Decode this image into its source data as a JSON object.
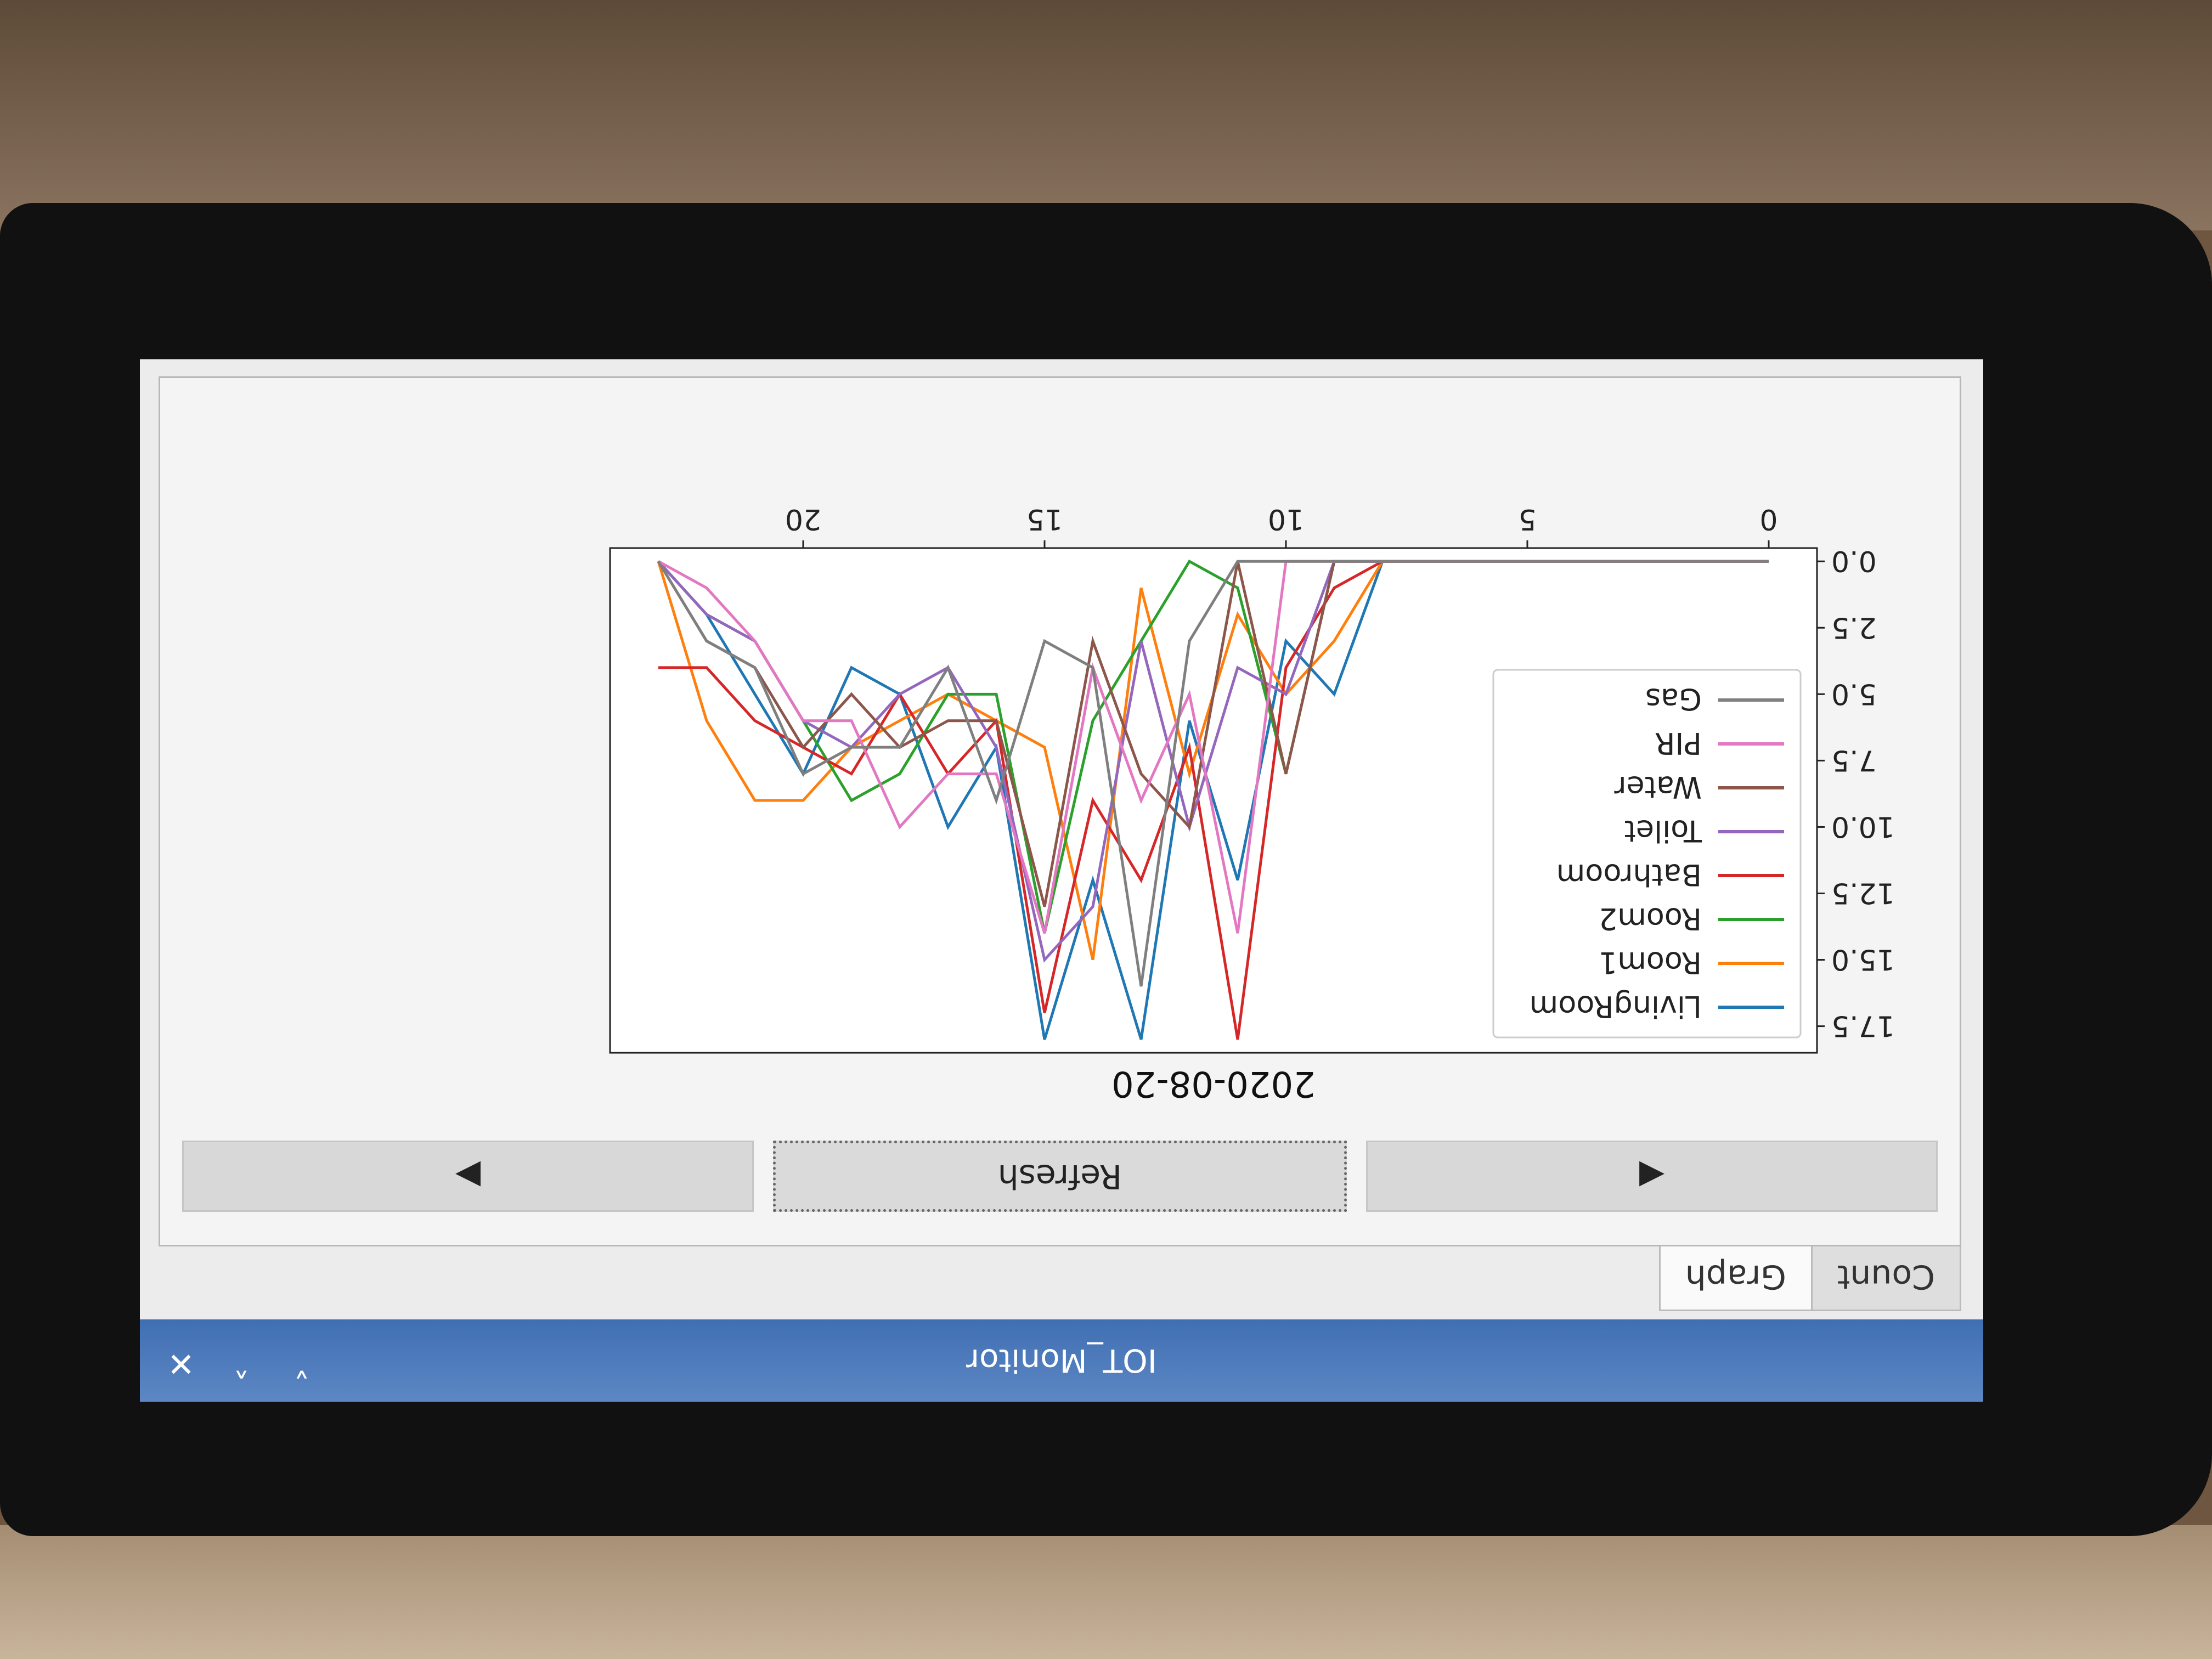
{
  "window": {
    "title": "IOT_Monitor",
    "controls": {
      "minimize": "˅",
      "maximize": "˄",
      "close": "✕"
    }
  },
  "tabs": [
    {
      "label": "Count",
      "active": false
    },
    {
      "label": "Graph",
      "active": true
    }
  ],
  "navigation": {
    "prev_label": "◀",
    "refresh_label": "Refresh",
    "next_label": "▶"
  },
  "colors": {
    "titlebar": "#4a78bb",
    "LivingRoom": "#1f77b4",
    "Room1": "#ff7f0e",
    "Room2": "#2ca02c",
    "Bathroom": "#d62728",
    "Toilet": "#9467bd",
    "Water": "#8c564b",
    "PIR": "#e377c2",
    "Gas": "#7f7f7f"
  },
  "chart_data": {
    "type": "line",
    "title": "2020-08-20",
    "xlabel": "",
    "ylabel": "",
    "xlim": [
      -1,
      24
    ],
    "ylim": [
      -0.5,
      18.5
    ],
    "x_ticks": [
      "0",
      "5",
      "10",
      "15",
      "20"
    ],
    "y_ticks": [
      "0.0",
      "2.5",
      "5.0",
      "7.5",
      "10.0",
      "12.5",
      "15.0",
      "17.5"
    ],
    "grid": false,
    "legend_position": "upper-left",
    "x": [
      0,
      1,
      2,
      3,
      4,
      5,
      6,
      7,
      8,
      9,
      10,
      11,
      12,
      13,
      14,
      15,
      16,
      17,
      18,
      19,
      20,
      21,
      22,
      23
    ],
    "series": [
      {
        "name": "LivingRoom",
        "values": [
          0,
          0,
          0,
          0,
          0,
          0,
          0,
          0,
          0,
          5,
          3,
          12,
          6,
          18,
          12,
          18,
          7,
          10,
          5,
          4,
          8,
          5,
          2,
          0
        ]
      },
      {
        "name": "Room1",
        "values": [
          0,
          0,
          0,
          0,
          0,
          0,
          0,
          0,
          0,
          3,
          5,
          2,
          8,
          1,
          15,
          7,
          6,
          5,
          6,
          7,
          9,
          9,
          6,
          0
        ]
      },
      {
        "name": "Room2",
        "values": [
          0,
          0,
          0,
          0,
          0,
          0,
          0,
          0,
          0,
          0,
          8,
          1,
          0,
          3,
          6,
          14,
          5,
          5,
          8,
          9,
          6,
          3,
          2,
          0
        ]
      },
      {
        "name": "Bathroom",
        "values": [
          0,
          0,
          0,
          0,
          0,
          0,
          0,
          0,
          0,
          1,
          4,
          18,
          7,
          12,
          9,
          17,
          6,
          8,
          5,
          8,
          7,
          6,
          4,
          4
        ]
      },
      {
        "name": "Toilet",
        "values": [
          0,
          0,
          0,
          0,
          0,
          0,
          0,
          0,
          0,
          0,
          5,
          4,
          10,
          3,
          13,
          15,
          7,
          4,
          5,
          7,
          6,
          3,
          2,
          0
        ]
      },
      {
        "name": "Water",
        "values": [
          0,
          0,
          0,
          0,
          0,
          0,
          0,
          0,
          0,
          0,
          8,
          0,
          10,
          8,
          3,
          13,
          6,
          6,
          7,
          5,
          7,
          4,
          3,
          0
        ]
      },
      {
        "name": "PIR",
        "values": [
          0,
          0,
          0,
          0,
          0,
          0,
          0,
          0,
          0,
          0,
          0,
          14,
          5,
          9,
          4,
          14,
          8,
          8,
          10,
          6,
          6,
          3,
          1,
          0
        ]
      },
      {
        "name": "Gas",
        "values": [
          0,
          0,
          0,
          0,
          0,
          0,
          0,
          0,
          0,
          0,
          0,
          0,
          3,
          16,
          4,
          3,
          9,
          4,
          7,
          7,
          8,
          4,
          3,
          0
        ]
      }
    ]
  }
}
